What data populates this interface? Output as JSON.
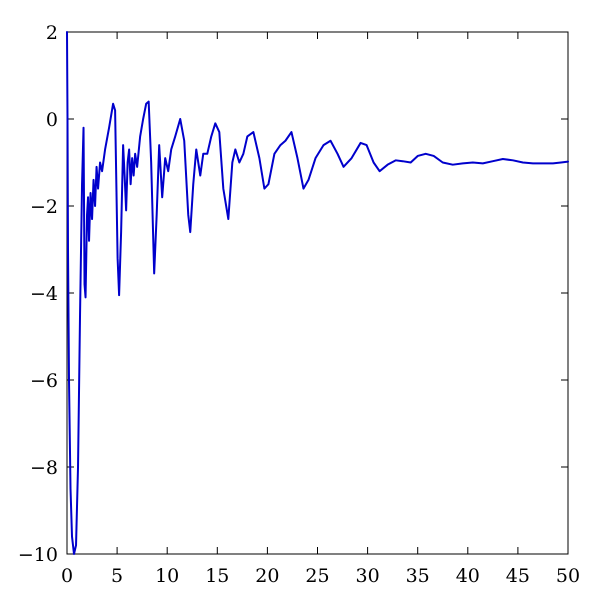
{
  "chart_data": {
    "type": "line",
    "title": "",
    "xlabel": "",
    "ylabel": "",
    "xlim": [
      0,
      50
    ],
    "ylim": [
      -10,
      2
    ],
    "xticks": [
      0,
      5,
      10,
      15,
      20,
      25,
      30,
      35,
      40,
      45,
      50
    ],
    "yticks": [
      -10,
      -8,
      -6,
      -4,
      -2,
      0,
      2
    ],
    "xtick_labels": [
      "0",
      "5",
      "10",
      "15",
      "20",
      "25",
      "30",
      "35",
      "40",
      "45",
      "50"
    ],
    "ytick_labels": [
      "−10",
      "−8",
      "−6",
      "−4",
      "−2",
      "0",
      "2"
    ],
    "grid": false,
    "line_color": "#0000cc",
    "series": [
      {
        "points": [
          [
            0,
            2
          ],
          [
            0.05,
            0
          ],
          [
            0.1,
            -3
          ],
          [
            0.2,
            -6
          ],
          [
            0.35,
            -8.5
          ],
          [
            0.5,
            -9.6
          ],
          [
            0.7,
            -10
          ],
          [
            0.9,
            -9.8
          ],
          [
            1.1,
            -8
          ],
          [
            1.3,
            -4.5
          ],
          [
            1.5,
            -1.5
          ],
          [
            1.65,
            -0.2
          ],
          [
            1.75,
            -3.8
          ],
          [
            1.85,
            -4.1
          ],
          [
            2.0,
            -2.2
          ],
          [
            2.1,
            -1.8
          ],
          [
            2.2,
            -2.8
          ],
          [
            2.35,
            -1.7
          ],
          [
            2.5,
            -2.3
          ],
          [
            2.65,
            -1.4
          ],
          [
            2.8,
            -2.0
          ],
          [
            2.95,
            -1.1
          ],
          [
            3.1,
            -1.6
          ],
          [
            3.3,
            -1.0
          ],
          [
            3.5,
            -1.2
          ],
          [
            3.8,
            -0.7
          ],
          [
            4.2,
            -0.2
          ],
          [
            4.6,
            0.35
          ],
          [
            4.8,
            0.2
          ],
          [
            5.05,
            -3.2
          ],
          [
            5.2,
            -4.05
          ],
          [
            5.4,
            -2.6
          ],
          [
            5.6,
            -0.6
          ],
          [
            5.75,
            -1.3
          ],
          [
            5.9,
            -2.1
          ],
          [
            6.05,
            -1.0
          ],
          [
            6.2,
            -0.7
          ],
          [
            6.35,
            -1.5
          ],
          [
            6.5,
            -0.9
          ],
          [
            6.65,
            -1.3
          ],
          [
            6.8,
            -0.8
          ],
          [
            7.0,
            -1.1
          ],
          [
            7.3,
            -0.4
          ],
          [
            7.6,
            0.0
          ],
          [
            7.9,
            0.35
          ],
          [
            8.15,
            0.4
          ],
          [
            8.4,
            -1.0
          ],
          [
            8.7,
            -3.55
          ],
          [
            8.95,
            -2.2
          ],
          [
            9.2,
            -0.6
          ],
          [
            9.5,
            -1.8
          ],
          [
            9.8,
            -0.9
          ],
          [
            10.1,
            -1.2
          ],
          [
            10.4,
            -0.7
          ],
          [
            10.8,
            -0.4
          ],
          [
            11.3,
            0.0
          ],
          [
            11.7,
            -0.5
          ],
          [
            12.1,
            -2.2
          ],
          [
            12.3,
            -2.6
          ],
          [
            12.6,
            -1.5
          ],
          [
            12.9,
            -0.7
          ],
          [
            13.3,
            -1.3
          ],
          [
            13.6,
            -0.8
          ],
          [
            14.0,
            -0.8
          ],
          [
            14.4,
            -0.4
          ],
          [
            14.8,
            -0.1
          ],
          [
            15.2,
            -0.3
          ],
          [
            15.6,
            -1.6
          ],
          [
            16.1,
            -2.3
          ],
          [
            16.5,
            -1.0
          ],
          [
            16.8,
            -0.7
          ],
          [
            17.2,
            -1.0
          ],
          [
            17.6,
            -0.8
          ],
          [
            18.0,
            -0.4
          ],
          [
            18.6,
            -0.3
          ],
          [
            19.2,
            -0.9
          ],
          [
            19.7,
            -1.6
          ],
          [
            20.1,
            -1.5
          ],
          [
            20.7,
            -0.8
          ],
          [
            21.3,
            -0.6
          ],
          [
            21.8,
            -0.5
          ],
          [
            22.4,
            -0.3
          ],
          [
            23.0,
            -0.9
          ],
          [
            23.6,
            -1.6
          ],
          [
            24.1,
            -1.4
          ],
          [
            24.8,
            -0.9
          ],
          [
            25.6,
            -0.6
          ],
          [
            26.3,
            -0.5
          ],
          [
            27.0,
            -0.8
          ],
          [
            27.6,
            -1.1
          ],
          [
            28.4,
            -0.9
          ],
          [
            29.3,
            -0.55
          ],
          [
            29.9,
            -0.6
          ],
          [
            30.6,
            -1.0
          ],
          [
            31.2,
            -1.2
          ],
          [
            32.0,
            -1.05
          ],
          [
            32.8,
            -0.95
          ],
          [
            33.5,
            -0.97
          ],
          [
            34.3,
            -1.0
          ],
          [
            35.0,
            -0.85
          ],
          [
            35.8,
            -0.8
          ],
          [
            36.6,
            -0.85
          ],
          [
            37.5,
            -1.0
          ],
          [
            38.5,
            -1.05
          ],
          [
            39.5,
            -1.02
          ],
          [
            40.5,
            -1.0
          ],
          [
            41.5,
            -1.02
          ],
          [
            42.5,
            -0.97
          ],
          [
            43.5,
            -0.92
          ],
          [
            44.5,
            -0.95
          ],
          [
            45.5,
            -1.0
          ],
          [
            46.5,
            -1.02
          ],
          [
            47.5,
            -1.02
          ],
          [
            48.5,
            -1.02
          ],
          [
            49.3,
            -1.0
          ],
          [
            50,
            -0.98
          ]
        ]
      }
    ]
  }
}
